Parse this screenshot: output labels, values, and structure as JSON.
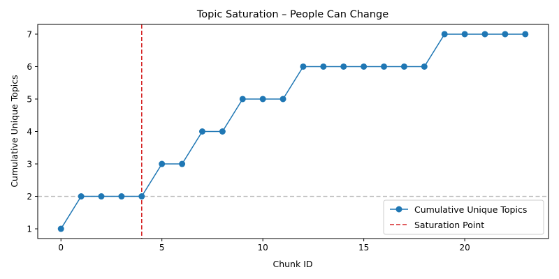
{
  "chart_data": {
    "type": "line",
    "title": "Topic Saturation – People Can Change",
    "xlabel": "Chunk ID",
    "ylabel": "Cumulative Unique Topics",
    "xlim": [
      -1.15,
      24.15
    ],
    "ylim": [
      0.7,
      7.3
    ],
    "xticks": [
      0,
      5,
      10,
      15,
      20
    ],
    "yticks": [
      1,
      2,
      3,
      4,
      5,
      6,
      7
    ],
    "grid": false,
    "legend_position": "lower-right",
    "series": [
      {
        "name": "Cumulative Unique Topics",
        "color": "#1f77b4",
        "marker": "circle",
        "x": [
          0,
          1,
          2,
          3,
          4,
          5,
          6,
          7,
          8,
          9,
          10,
          11,
          12,
          13,
          14,
          15,
          16,
          17,
          18,
          19,
          20,
          21,
          22,
          23
        ],
        "y": [
          1,
          2,
          2,
          2,
          2,
          3,
          3,
          4,
          4,
          5,
          5,
          5,
          6,
          6,
          6,
          6,
          6,
          6,
          6,
          7,
          7,
          7,
          7,
          7
        ]
      }
    ],
    "vlines": [
      {
        "name": "Saturation Point",
        "x": 4,
        "color": "#d62728",
        "style": "dashed"
      }
    ],
    "hlines": [
      {
        "y": 2,
        "color": "#bbbbbb",
        "style": "dashed"
      }
    ]
  }
}
